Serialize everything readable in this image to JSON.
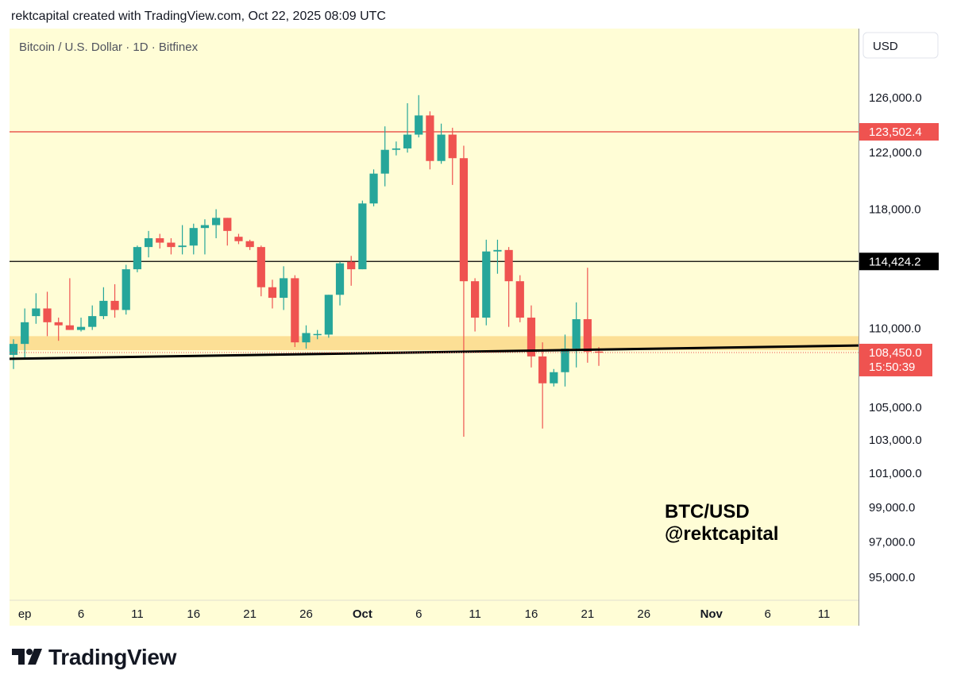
{
  "header": {
    "caption": "rektcapital created with TradingView.com, Oct 22, 2025 08:09 UTC"
  },
  "footer": {
    "brand": "TradingView"
  },
  "colors": {
    "background": "#fffdd6",
    "up": "#26a69a",
    "down": "#ef5350",
    "zone": "#fcd98a",
    "resistance_line": "#e53935",
    "level_line": "#000000"
  },
  "chart_data": {
    "type": "candlestick",
    "symbol_label": "Bitcoin / U.S. Dollar · 1D · Bitfinex",
    "currency": "USD",
    "y_scale": "log",
    "ylim": [
      93900,
      131000
    ],
    "y_ticks": [
      "126,000.0",
      "122,000.0",
      "118,000.0",
      "110,000.0",
      "105,000.0",
      "103,000.0",
      "101,000.0",
      "99,000.0",
      "97,000.0",
      "95,000.0"
    ],
    "x_range": [
      "2025-08-31",
      "2025-11-14"
    ],
    "x_ticks": [
      {
        "date": "2025-09-01",
        "label": "ep",
        "bold": false
      },
      {
        "date": "2025-09-06",
        "label": "6",
        "bold": false
      },
      {
        "date": "2025-09-11",
        "label": "11",
        "bold": false
      },
      {
        "date": "2025-09-16",
        "label": "16",
        "bold": false
      },
      {
        "date": "2025-09-21",
        "label": "21",
        "bold": false
      },
      {
        "date": "2025-09-26",
        "label": "26",
        "bold": false
      },
      {
        "date": "2025-10-01",
        "label": "Oct",
        "bold": true
      },
      {
        "date": "2025-10-06",
        "label": "6",
        "bold": false
      },
      {
        "date": "2025-10-11",
        "label": "11",
        "bold": false
      },
      {
        "date": "2025-10-16",
        "label": "16",
        "bold": false
      },
      {
        "date": "2025-10-21",
        "label": "21",
        "bold": false
      },
      {
        "date": "2025-10-26",
        "label": "26",
        "bold": false
      },
      {
        "date": "2025-11-01",
        "label": "Nov",
        "bold": true
      },
      {
        "date": "2025-11-06",
        "label": "6",
        "bold": false
      },
      {
        "date": "2025-11-11",
        "label": "11",
        "bold": false
      }
    ],
    "candles": [
      {
        "date": "2025-08-31",
        "o": 108300,
        "h": 109300,
        "l": 107400,
        "c": 109000
      },
      {
        "date": "2025-09-01",
        "o": 109000,
        "h": 111300,
        "l": 108000,
        "c": 110400
      },
      {
        "date": "2025-09-02",
        "o": 110800,
        "h": 112300,
        "l": 110300,
        "c": 111300
      },
      {
        "date": "2025-09-03",
        "o": 111300,
        "h": 112400,
        "l": 109500,
        "c": 110400
      },
      {
        "date": "2025-09-04",
        "o": 110400,
        "h": 110700,
        "l": 109200,
        "c": 110200
      },
      {
        "date": "2025-09-05",
        "o": 110200,
        "h": 113300,
        "l": 109900,
        "c": 109900
      },
      {
        "date": "2025-09-06",
        "o": 109900,
        "h": 110700,
        "l": 109800,
        "c": 110100
      },
      {
        "date": "2025-09-07",
        "o": 110100,
        "h": 111500,
        "l": 109900,
        "c": 110800
      },
      {
        "date": "2025-09-08",
        "o": 110800,
        "h": 112700,
        "l": 110600,
        "c": 111800
      },
      {
        "date": "2025-09-09",
        "o": 111800,
        "h": 112900,
        "l": 110700,
        "c": 111200
      },
      {
        "date": "2025-09-10",
        "o": 111200,
        "h": 114200,
        "l": 110900,
        "c": 113900
      },
      {
        "date": "2025-09-11",
        "o": 113900,
        "h": 115500,
        "l": 113700,
        "c": 115400
      },
      {
        "date": "2025-09-12",
        "o": 115400,
        "h": 116500,
        "l": 114700,
        "c": 116000
      },
      {
        "date": "2025-09-13",
        "o": 116000,
        "h": 116300,
        "l": 115300,
        "c": 115700
      },
      {
        "date": "2025-09-14",
        "o": 115700,
        "h": 116000,
        "l": 114900,
        "c": 115400
      },
      {
        "date": "2025-09-15",
        "o": 115400,
        "h": 116900,
        "l": 114900,
        "c": 115500
      },
      {
        "date": "2025-09-16",
        "o": 115500,
        "h": 117000,
        "l": 114900,
        "c": 116700
      },
      {
        "date": "2025-09-17",
        "o": 116700,
        "h": 117300,
        "l": 114900,
        "c": 116900
      },
      {
        "date": "2025-09-18",
        "o": 116900,
        "h": 118000,
        "l": 116000,
        "c": 117400
      },
      {
        "date": "2025-09-19",
        "o": 117400,
        "h": 117400,
        "l": 115500,
        "c": 116500
      },
      {
        "date": "2025-09-20",
        "o": 116100,
        "h": 116300,
        "l": 115600,
        "c": 115800
      },
      {
        "date": "2025-09-21",
        "o": 115800,
        "h": 115900,
        "l": 115200,
        "c": 115400
      },
      {
        "date": "2025-09-22",
        "o": 115400,
        "h": 115500,
        "l": 112100,
        "c": 112700
      },
      {
        "date": "2025-09-23",
        "o": 112700,
        "h": 113200,
        "l": 111300,
        "c": 112000
      },
      {
        "date": "2025-09-24",
        "o": 112000,
        "h": 114100,
        "l": 111200,
        "c": 113300
      },
      {
        "date": "2025-09-25",
        "o": 113300,
        "h": 113500,
        "l": 108800,
        "c": 109100
      },
      {
        "date": "2025-09-26",
        "o": 109100,
        "h": 110200,
        "l": 108700,
        "c": 109700
      },
      {
        "date": "2025-09-27",
        "o": 109600,
        "h": 109900,
        "l": 109300,
        "c": 109600
      },
      {
        "date": "2025-09-28",
        "o": 109600,
        "h": 112200,
        "l": 109400,
        "c": 112200
      },
      {
        "date": "2025-09-29",
        "o": 112200,
        "h": 114400,
        "l": 111500,
        "c": 114300
      },
      {
        "date": "2025-09-30",
        "o": 114400,
        "h": 114800,
        "l": 112800,
        "c": 113900
      },
      {
        "date": "2025-10-01",
        "o": 113900,
        "h": 118600,
        "l": 113900,
        "c": 118400
      },
      {
        "date": "2025-10-02",
        "o": 118400,
        "h": 120800,
        "l": 118200,
        "c": 120500
      },
      {
        "date": "2025-10-03",
        "o": 120500,
        "h": 123900,
        "l": 119600,
        "c": 122200
      },
      {
        "date": "2025-10-04",
        "o": 122200,
        "h": 122800,
        "l": 121800,
        "c": 122300
      },
      {
        "date": "2025-10-05",
        "o": 122300,
        "h": 125600,
        "l": 122000,
        "c": 123300
      },
      {
        "date": "2025-10-06",
        "o": 123300,
        "h": 126200,
        "l": 123100,
        "c": 124700
      },
      {
        "date": "2025-10-07",
        "o": 124700,
        "h": 125000,
        "l": 120800,
        "c": 121400
      },
      {
        "date": "2025-10-08",
        "o": 121400,
        "h": 124100,
        "l": 121200,
        "c": 123300
      },
      {
        "date": "2025-10-09",
        "o": 123300,
        "h": 123800,
        "l": 119700,
        "c": 121600
      },
      {
        "date": "2025-10-10",
        "o": 121600,
        "h": 122500,
        "l": 103200,
        "c": 113100
      },
      {
        "date": "2025-10-11",
        "o": 113100,
        "h": 113300,
        "l": 109800,
        "c": 110700
      },
      {
        "date": "2025-10-12",
        "o": 110700,
        "h": 115900,
        "l": 110200,
        "c": 115100
      },
      {
        "date": "2025-10-13",
        "o": 115100,
        "h": 115900,
        "l": 113600,
        "c": 115200
      },
      {
        "date": "2025-10-14",
        "o": 115200,
        "h": 115400,
        "l": 110100,
        "c": 113100
      },
      {
        "date": "2025-10-15",
        "o": 113100,
        "h": 113500,
        "l": 110400,
        "c": 110700
      },
      {
        "date": "2025-10-16",
        "o": 110700,
        "h": 111500,
        "l": 107500,
        "c": 108200
      },
      {
        "date": "2025-10-17",
        "o": 108200,
        "h": 109100,
        "l": 103700,
        "c": 106500
      },
      {
        "date": "2025-10-18",
        "o": 106500,
        "h": 107400,
        "l": 106300,
        "c": 107200
      },
      {
        "date": "2025-10-19",
        "o": 107200,
        "h": 109600,
        "l": 106300,
        "c": 108700
      },
      {
        "date": "2025-10-20",
        "o": 108700,
        "h": 111700,
        "l": 107500,
        "c": 110600
      },
      {
        "date": "2025-10-21",
        "o": 110600,
        "h": 114000,
        "l": 107800,
        "c": 108500
      },
      {
        "date": "2025-10-22",
        "o": 108500,
        "h": 108800,
        "l": 107600,
        "c": 108450
      }
    ],
    "horizontal_levels": [
      {
        "price": 123502.4,
        "label": "123,502.4",
        "kind": "resistance"
      },
      {
        "price": 114424.2,
        "label": "114,424.2",
        "kind": "level"
      }
    ],
    "support_zone": {
      "low": 108600,
      "high": 109500
    },
    "trendline": [
      {
        "date": "2025-08-31",
        "price": 108050
      },
      {
        "date": "2025-11-14",
        "price": 108900
      }
    ],
    "last_price": {
      "label": "108,450.0",
      "price": 108450,
      "countdown": "15:50:39"
    },
    "watermark": {
      "line1": "BTC/USD",
      "line2": "@rektcapital"
    }
  }
}
